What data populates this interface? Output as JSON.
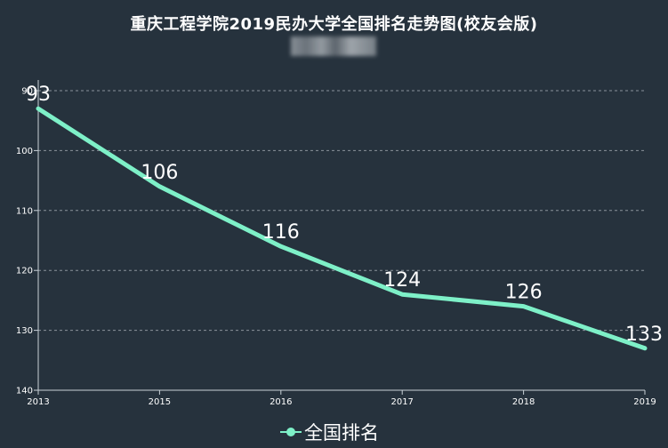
{
  "chart_data": {
    "type": "line",
    "title": "重庆工程学院2019民办大学全国排名走势图(校友会版)",
    "categories": [
      "2013",
      "2015",
      "2016",
      "2017",
      "2018",
      "2019"
    ],
    "series": [
      {
        "name": "全国排名",
        "values": [
          93,
          106,
          116,
          124,
          126,
          133
        ]
      }
    ],
    "ylim": [
      90,
      140
    ],
    "y_ticks": [
      "90",
      "100",
      "110",
      "120",
      "130",
      "140"
    ],
    "y_inverted": true,
    "grid": "horizontal dashed",
    "legend": "bottom-center",
    "colors": {
      "background": "#26323d",
      "line": "#7ef0c8",
      "text": "#ffffff",
      "axis": "#c9d1d8",
      "grid": "#8a939b"
    }
  }
}
